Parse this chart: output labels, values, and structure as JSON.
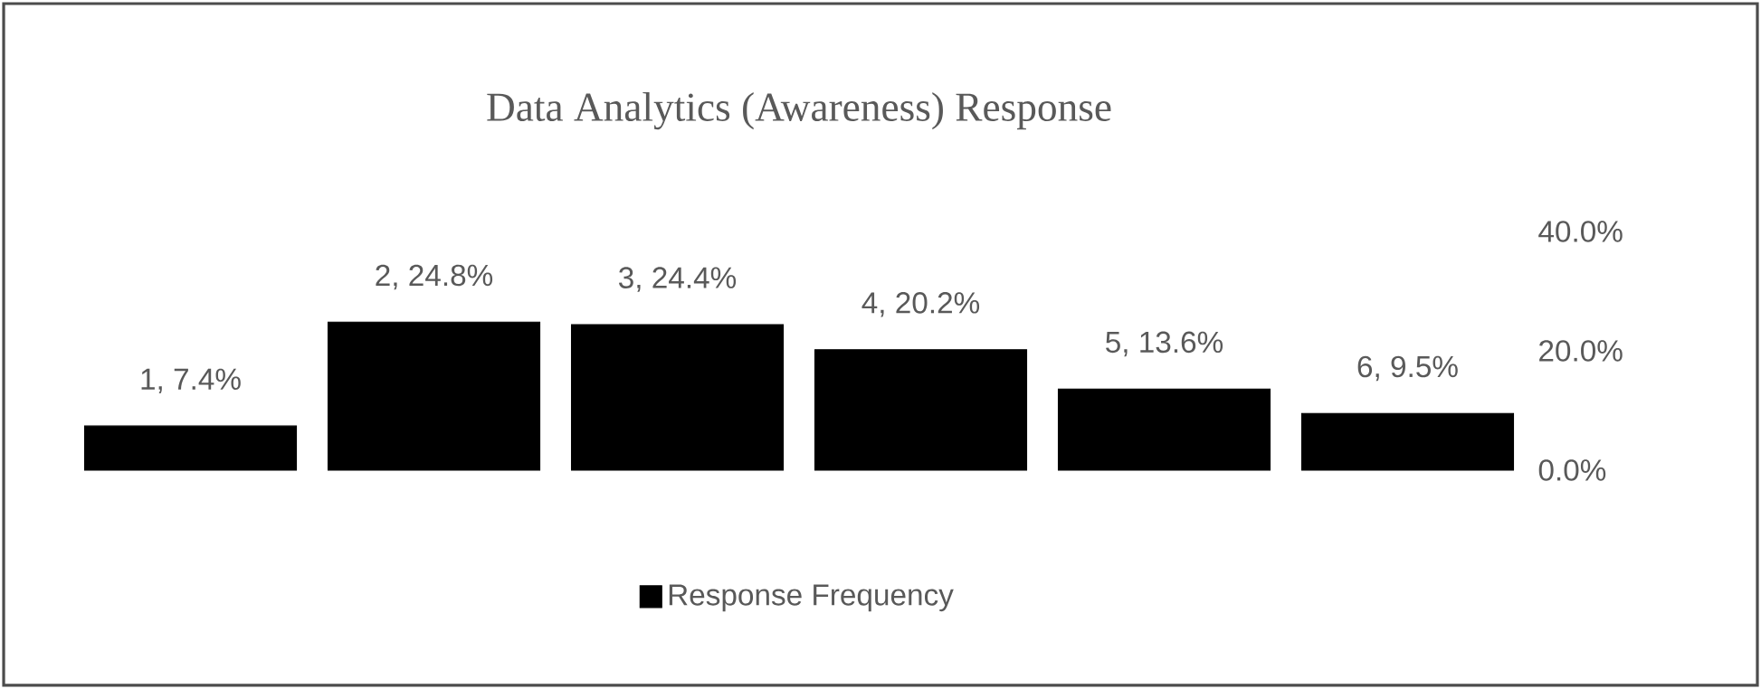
{
  "chart_data": {
    "type": "bar",
    "title": "Data Analytics (Awareness) Response",
    "categories": [
      null,
      null,
      null,
      null,
      null,
      null
    ],
    "series": [
      {
        "name": "Response Frequency",
        "color": "#000000",
        "values": [
          7.4,
          24.8,
          24.4,
          20.2,
          13.6,
          9.5
        ],
        "value_labels": [
          "1, 7.4%",
          "2, 24.8%",
          "3, 24.4%",
          "4, 20.2%",
          "5, 13.6%",
          "6, 9.5%"
        ]
      }
    ],
    "ylim": [
      0,
      40
    ],
    "yticks": [
      {
        "value": 0,
        "label": "0.0%"
      },
      {
        "value": 20,
        "label": "20.0%"
      },
      {
        "value": 40,
        "label": "40.0%"
      }
    ],
    "tick_labels": "y",
    "grid": false,
    "legend": "bottom"
  }
}
